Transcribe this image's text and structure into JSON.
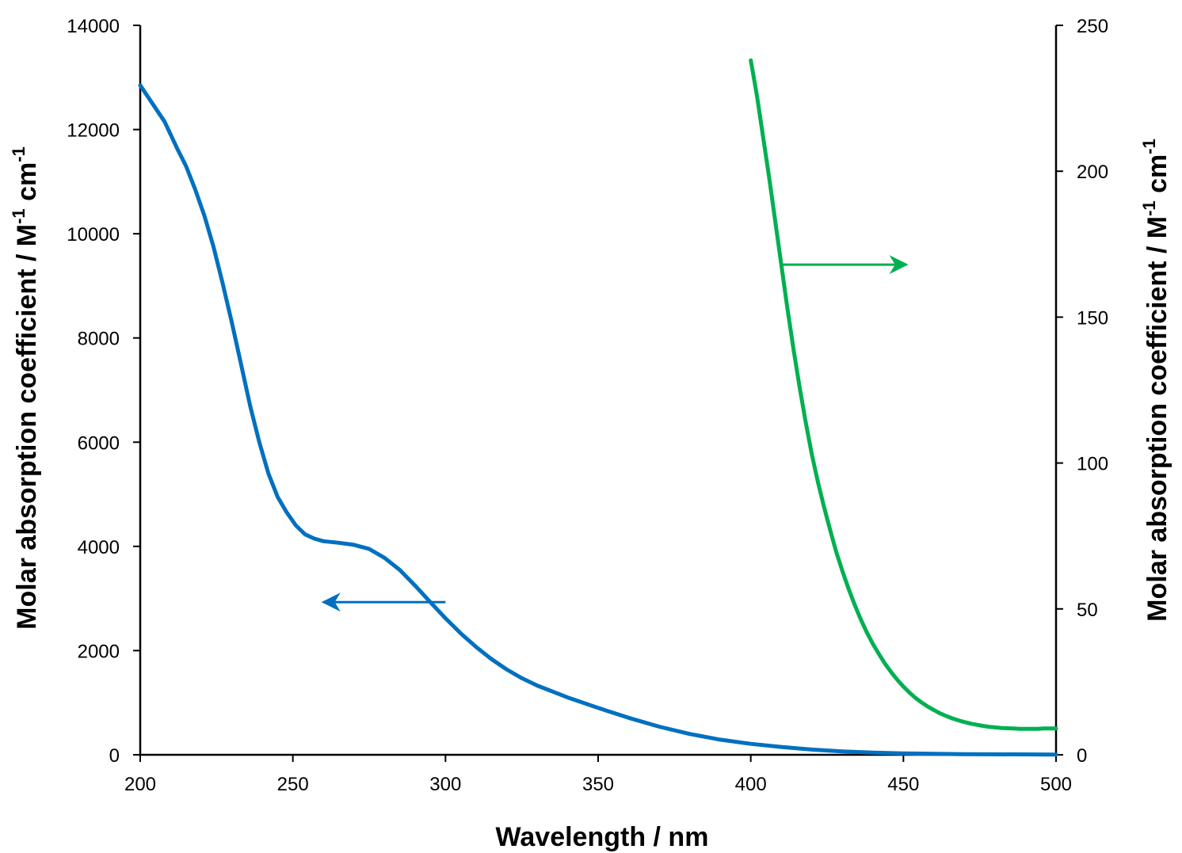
{
  "chart_data": {
    "type": "line",
    "title": "",
    "xlabel": "Wavelength / nm",
    "ylabel": {
      "main": "Molar absorption coefficient / M",
      "sup1": "-1",
      "mid": " cm",
      "sup2": "-1"
    },
    "y2label": {
      "main": "Molar absorption coefficient / M",
      "sup1": "-1",
      "mid": " cm",
      "sup2": "-1"
    },
    "xlim": [
      200,
      500
    ],
    "ylim": [
      0,
      14000
    ],
    "y2lim": [
      0,
      250
    ],
    "xticks": [
      "200",
      "250",
      "300",
      "350",
      "400",
      "450",
      "500"
    ],
    "yticks": [
      "0",
      "2000",
      "4000",
      "6000",
      "8000",
      "10000",
      "12000",
      "14000"
    ],
    "y2ticks": [
      "0",
      "50",
      "100",
      "150",
      "200",
      "250"
    ],
    "grid": false,
    "legend": "none",
    "series": [
      {
        "axis": "left",
        "color": "#0070c0",
        "x": [
          200,
          204,
          208,
          210,
          212,
          215,
          218,
          221,
          224,
          227,
          230,
          233,
          236,
          239,
          242,
          245,
          248,
          251,
          254,
          257,
          260,
          265,
          270,
          275,
          280,
          285,
          290,
          295,
          300,
          305,
          310,
          315,
          320,
          325,
          330,
          340,
          350,
          360,
          370,
          380,
          390,
          400,
          410,
          420,
          430,
          440,
          450,
          460,
          470,
          480,
          490,
          500
        ],
        "y": [
          12850,
          12500,
          12150,
          11900,
          11650,
          11300,
          10850,
          10350,
          9750,
          9050,
          8300,
          7500,
          6700,
          6000,
          5400,
          4950,
          4650,
          4400,
          4230,
          4150,
          4100,
          4070,
          4030,
          3950,
          3780,
          3550,
          3250,
          2930,
          2620,
          2330,
          2070,
          1840,
          1640,
          1470,
          1330,
          1100,
          900,
          710,
          540,
          400,
          290,
          210,
          150,
          100,
          65,
          42,
          28,
          18,
          12,
          9,
          7,
          5
        ]
      },
      {
        "axis": "right",
        "color": "#00b050",
        "x": [
          400,
          402,
          404,
          406,
          408,
          410,
          412,
          414,
          416,
          418,
          420,
          422,
          424,
          426,
          428,
          430,
          432,
          434,
          436,
          438,
          440,
          442,
          444,
          446,
          448,
          450,
          452,
          454,
          456,
          458,
          460,
          462,
          464,
          466,
          468,
          470,
          472,
          474,
          476,
          478,
          480,
          482,
          484,
          486,
          488,
          490,
          492,
          494,
          496,
          498,
          500
        ],
        "y": [
          238,
          226,
          212,
          198,
          183,
          168,
          153,
          139,
          126,
          114,
          103,
          93.5,
          85,
          77,
          69.5,
          63,
          57,
          51.5,
          46.5,
          42,
          38,
          34.5,
          31.2,
          28.3,
          25.7,
          23.4,
          21.3,
          19.5,
          17.9,
          16.5,
          15.3,
          14.2,
          13.3,
          12.5,
          11.8,
          11.2,
          10.7,
          10.3,
          9.9,
          9.6,
          9.4,
          9.2,
          9.1,
          9.0,
          8.9,
          8.9,
          8.9,
          8.9,
          9.0,
          9.0,
          9.0
        ]
      }
    ],
    "annotations": [
      {
        "type": "arrow",
        "direction": "left",
        "color": "#0070c0",
        "from": [
          300,
          2930
        ],
        "to": [
          260,
          2930
        ],
        "axis": "left"
      },
      {
        "type": "arrow",
        "direction": "right",
        "color": "#00b050",
        "from": [
          410,
          168
        ],
        "to": [
          451,
          168
        ],
        "axis": "right"
      }
    ]
  }
}
